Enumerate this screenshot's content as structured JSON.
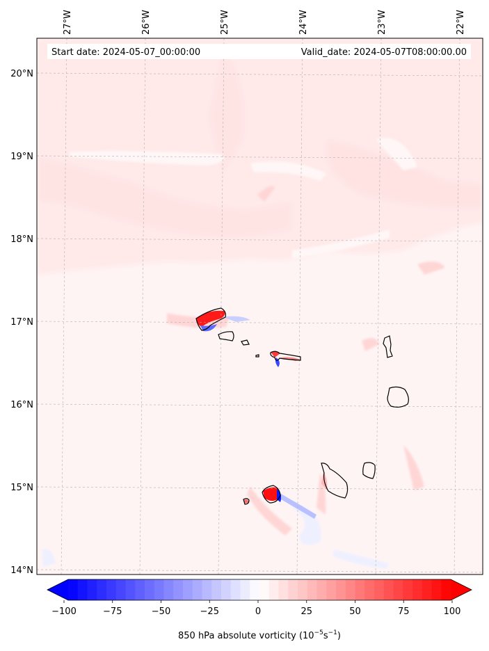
{
  "map": {
    "start_label": "Start date: 2024-05-07_00:00:00",
    "valid_label": "Valid_date: 2024-05-07T08:00:00.00",
    "lon_ticks": [
      {
        "value": -27,
        "label": "27°W"
      },
      {
        "value": -26,
        "label": "26°W"
      },
      {
        "value": -25,
        "label": "25°W"
      },
      {
        "value": -24,
        "label": "24°W"
      },
      {
        "value": -23,
        "label": "23°W"
      },
      {
        "value": -22,
        "label": "22°W"
      }
    ],
    "lat_ticks": [
      {
        "value": 20,
        "label": "20°N"
      },
      {
        "value": 19,
        "label": "19°N"
      },
      {
        "value": 18,
        "label": "18°N"
      },
      {
        "value": 17,
        "label": "17°N"
      },
      {
        "value": 16,
        "label": "16°N"
      },
      {
        "value": 15,
        "label": "15°N"
      },
      {
        "value": 14,
        "label": "14°N"
      }
    ],
    "colors": {
      "background_field": "#fff4f4",
      "northern_band": "#ffe6e6",
      "positive_max": "#ff0000",
      "negative_max": "#0000ff",
      "coastline": "#000000",
      "gridline": "#b0b0b0"
    }
  },
  "colorbar": {
    "ticks": [
      {
        "value": -100,
        "label": "−100"
      },
      {
        "value": -75,
        "label": "−75"
      },
      {
        "value": -50,
        "label": "−50"
      },
      {
        "value": -25,
        "label": "−25"
      },
      {
        "value": 0,
        "label": "0"
      },
      {
        "value": 25,
        "label": "25"
      },
      {
        "value": 50,
        "label": "50"
      },
      {
        "value": 75,
        "label": "75"
      },
      {
        "value": 100,
        "label": "100"
      }
    ],
    "label_main": "850 hPa absolute vorticity (10",
    "label_exp1": "−5",
    "label_mid": "s",
    "label_exp2": "−1",
    "label_end": ")"
  }
}
